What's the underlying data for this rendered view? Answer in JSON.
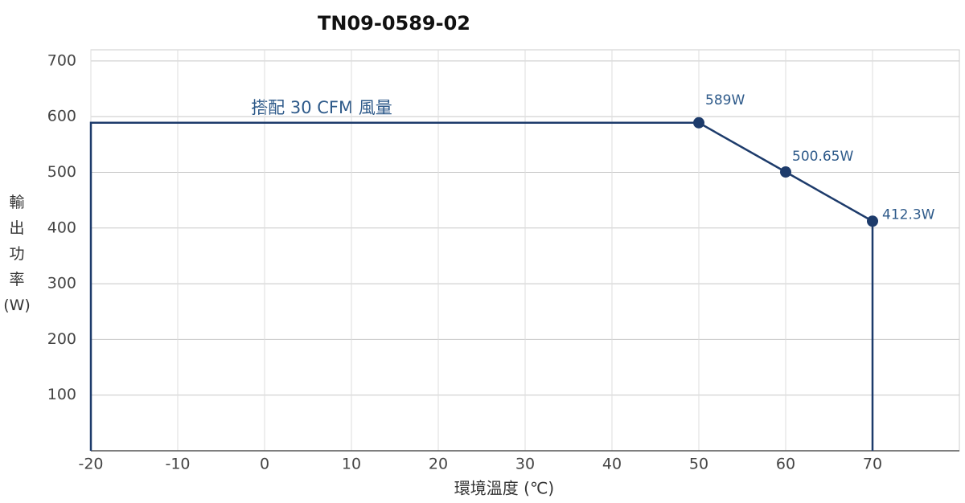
{
  "chart_data": {
    "type": "line",
    "title": "TN09-0589-02",
    "x_label": "環境溫度 (℃)",
    "y_label": "輸出功率(W)",
    "annotation": "搭配 30 CFM 風量",
    "x": [
      -20,
      -20,
      50,
      60,
      70,
      70
    ],
    "series": [
      {
        "name": "搭配 30 CFM 風量",
        "color": "#1d3b6b",
        "values": [
          0,
          589,
          589,
          500.65,
          412.3,
          0
        ],
        "value_labels": [
          null,
          null,
          "589W",
          "500.65W",
          "412.3W",
          null
        ]
      }
    ],
    "xlim": [
      -20,
      80
    ],
    "xticks": [
      -20,
      -10,
      0,
      10,
      20,
      30,
      40,
      50,
      60,
      70
    ],
    "ylim": [
      0,
      720
    ],
    "yticks": [
      100,
      200,
      300,
      400,
      500,
      600,
      700
    ],
    "grid": true
  }
}
